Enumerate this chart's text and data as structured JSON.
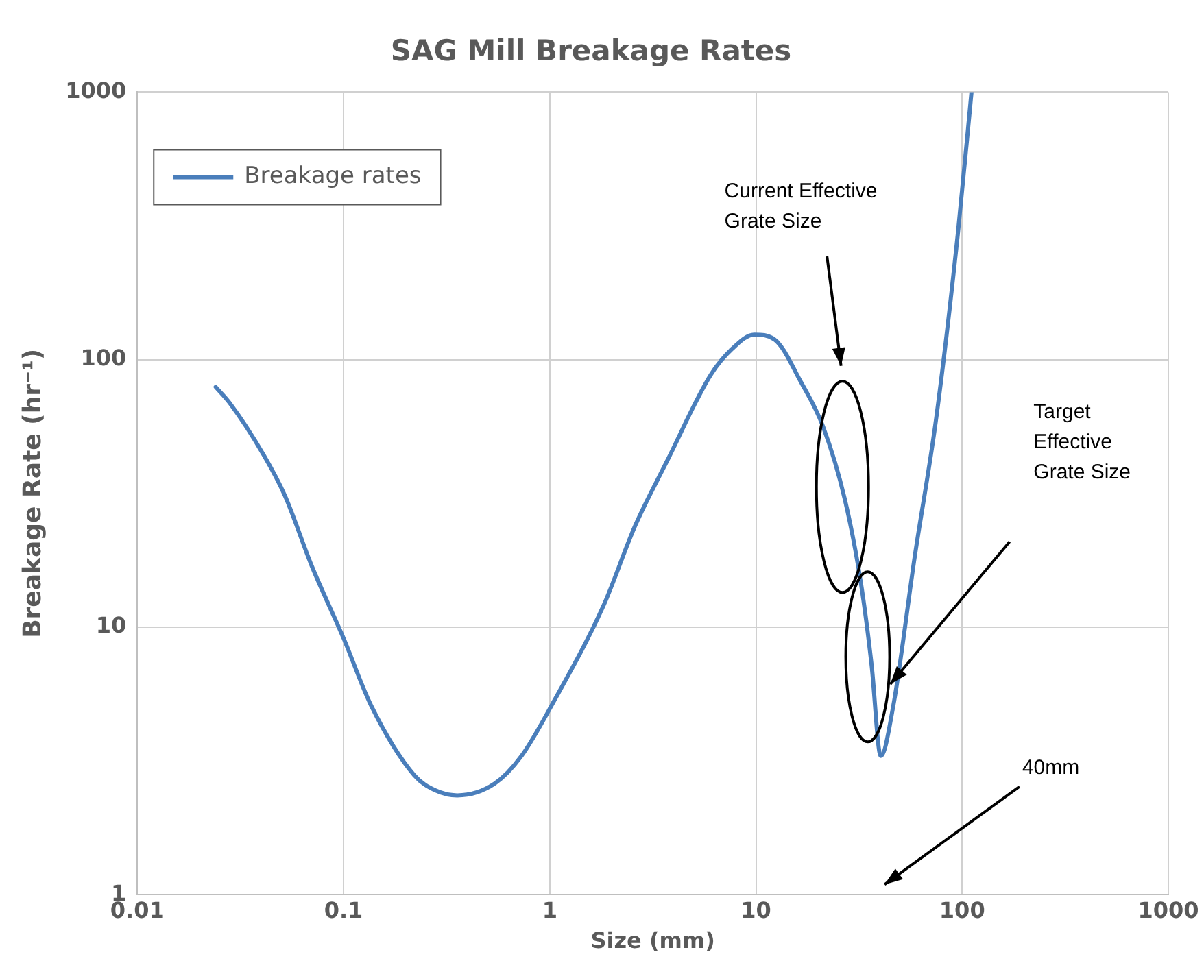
{
  "chart_data": {
    "type": "line",
    "title": "SAG Mill Breakage Rates",
    "xlabel": "Size (mm)",
    "ylabel": "Breakage Rate (hr⁻¹)",
    "log": "xy",
    "xlim": [
      0.01,
      1000
    ],
    "xticks": [
      0.01,
      0.1,
      1,
      10,
      100,
      1000
    ],
    "ylim": [
      1,
      1000
    ],
    "yticks": [
      1,
      10,
      100,
      1000
    ],
    "grid": true,
    "legend": "top left",
    "marker": "none",
    "line_style": "solid",
    "series": [
      {
        "name": "Breakage rates",
        "color": "#4a7ebb",
        "x": [
          0.024,
          0.028,
          0.041,
          0.052,
          0.07,
          0.1,
          0.136,
          0.22,
          0.28,
          0.356,
          0.54,
          0.73,
          1.05,
          1.82,
          2.6,
          3.72,
          6.05,
          7.69,
          9.8,
          12.3,
          16.6,
          21.2,
          27,
          32.3,
          36.4,
          40.3,
          46.4,
          59,
          75,
          95.5,
          111
        ],
        "values": [
          79,
          69,
          44,
          31,
          17,
          9.1,
          5.1,
          2.8,
          2.45,
          2.35,
          2.6,
          3.3,
          5.3,
          12,
          24,
          42,
          88,
          110,
          124,
          119,
          82,
          56,
          30,
          14.6,
          7.2,
          3.3,
          5.1,
          18.5,
          61,
          300,
          1000
        ]
      }
    ],
    "annotations": [
      "Current Effective\nGrate Size",
      "Target\nEffective\nGrate Size",
      "40mm"
    ]
  }
}
